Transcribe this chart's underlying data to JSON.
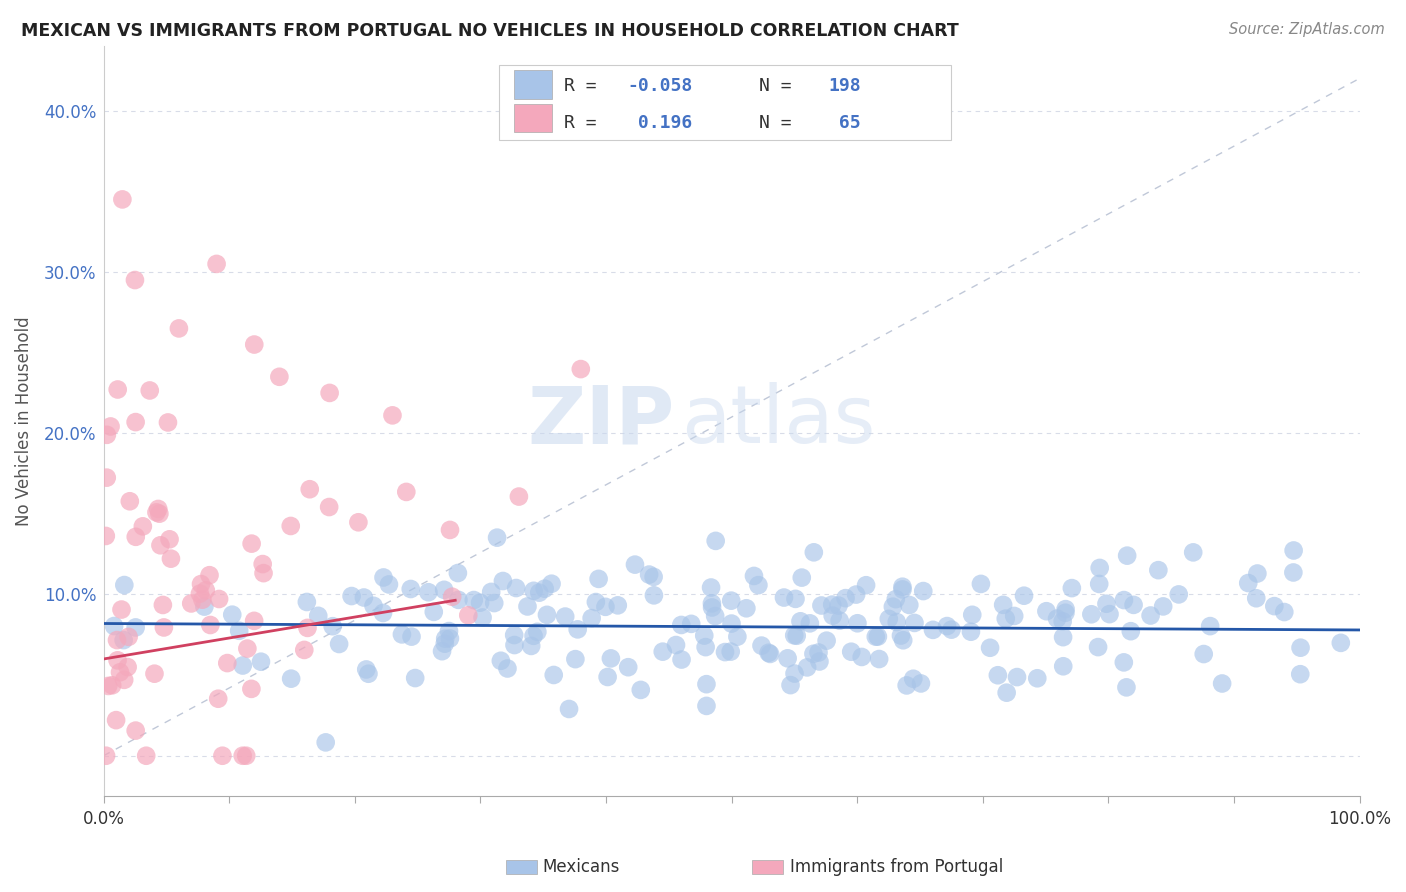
{
  "title": "MEXICAN VS IMMIGRANTS FROM PORTUGAL NO VEHICLES IN HOUSEHOLD CORRELATION CHART",
  "source": "Source: ZipAtlas.com",
  "ylabel": "No Vehicles in Household",
  "xlim": [
    0.0,
    1.0
  ],
  "ylim": [
    -0.025,
    0.44
  ],
  "xtick_positions": [
    0.0,
    0.1,
    0.2,
    0.3,
    0.4,
    0.5,
    0.6,
    0.7,
    0.8,
    0.9,
    1.0
  ],
  "xtick_labels": [
    "0.0%",
    "",
    "",
    "",
    "",
    "",
    "",
    "",
    "",
    "",
    "100.0%"
  ],
  "ytick_positions": [
    0.0,
    0.1,
    0.2,
    0.3,
    0.4
  ],
  "ytick_labels": [
    "",
    "10.0%",
    "20.0%",
    "30.0%",
    "40.0%"
  ],
  "blue_color": "#a8c4e8",
  "pink_color": "#f4a8bc",
  "blue_line_color": "#2457a8",
  "pink_line_color": "#d04060",
  "diag_line_color": "#c0c8d8",
  "watermark_zip": "ZIP",
  "watermark_atlas": "atlas",
  "blue_R": -0.058,
  "blue_N": 198,
  "pink_R": 0.196,
  "pink_N": 65,
  "blue_intercept": 0.082,
  "blue_slope": -0.004,
  "pink_intercept": 0.06,
  "pink_slope": 0.13,
  "seed": 42
}
